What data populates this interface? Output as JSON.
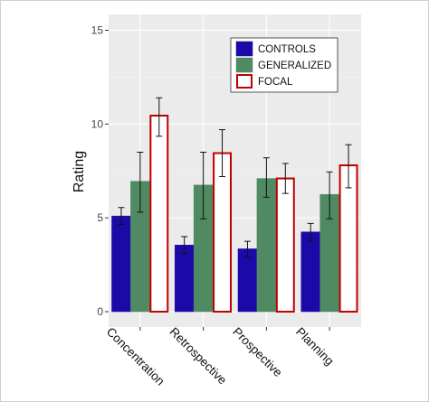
{
  "chart_data": {
    "type": "bar",
    "title": "",
    "xlabel": "",
    "ylabel": "Rating",
    "ylim": [
      0,
      15
    ],
    "yticks": [
      "0",
      "5",
      "10",
      "15"
    ],
    "categories": [
      "Concentration",
      "Retrospective",
      "Prospective",
      "Planning"
    ],
    "series": [
      {
        "name": "CONTROLS",
        "values": [
          5.1,
          3.55,
          3.35,
          4.25
        ],
        "err_low": [
          4.65,
          3.1,
          2.9,
          3.75
        ],
        "err_high": [
          5.55,
          4.0,
          3.75,
          4.7
        ],
        "fill": "#1c0aa8",
        "stroke": "#1c0aa8"
      },
      {
        "name": "GENERALIZED",
        "values": [
          6.95,
          6.75,
          7.1,
          6.25
        ],
        "err_low": [
          5.3,
          4.95,
          6.1,
          4.95
        ],
        "err_high": [
          8.5,
          8.5,
          8.2,
          7.45
        ],
        "fill": "#4f8a62",
        "stroke": "#4f8a62"
      },
      {
        "name": "FOCAL",
        "values": [
          10.45,
          8.45,
          7.1,
          7.8
        ],
        "err_low": [
          9.35,
          7.2,
          6.3,
          6.6
        ],
        "err_high": [
          11.4,
          9.7,
          7.9,
          8.9
        ],
        "fill": "#ffffff",
        "stroke": "#c00000"
      }
    ],
    "grid": true,
    "legend_position": "top-right"
  }
}
